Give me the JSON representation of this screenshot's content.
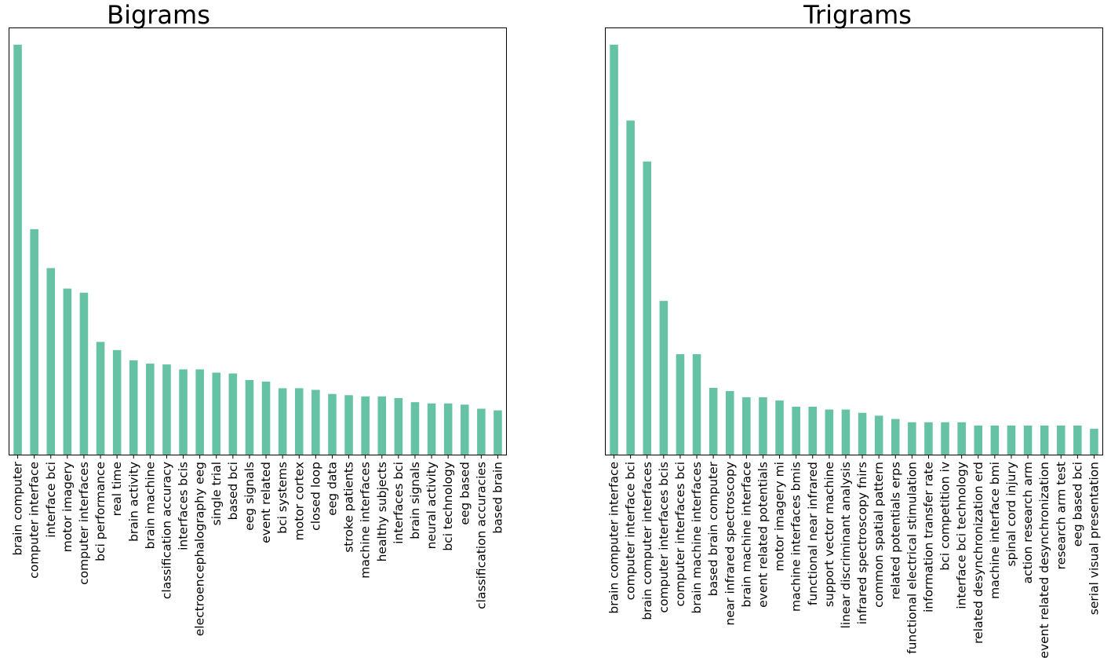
{
  "colors": {
    "bar": "#66c2a5",
    "axes": "#000000",
    "background": "#ffffff"
  },
  "chart_data": [
    {
      "type": "bar",
      "title": "Bigrams",
      "xlabel": "",
      "ylabel": "",
      "y_axis_visible": false,
      "grid": false,
      "ylim": [
        0,
        104
      ],
      "categories": [
        "brain computer",
        "computer interface",
        "interface bci",
        "motor imagery",
        "computer interfaces",
        "bci performance",
        "real time",
        "brain activity",
        "brain machine",
        "classification accuracy",
        "interfaces bcis",
        "electroencephalography eeg",
        "single trial",
        "based bci",
        "eeg signals",
        "event related",
        "bci systems",
        "motor cortex",
        "closed loop",
        "eeg data",
        "stroke patients",
        "machine interfaces",
        "healthy subjects",
        "interfaces bci",
        "brain signals",
        "neural activity",
        "bci technology",
        "eeg based",
        "classification accuracies",
        "based brain"
      ],
      "values": [
        100,
        55,
        45.5,
        40.5,
        39.5,
        27.5,
        25.5,
        23,
        22.2,
        22,
        20.8,
        20.8,
        20,
        19.8,
        18.2,
        17.8,
        16.2,
        16.2,
        15.8,
        14.8,
        14.5,
        14.2,
        14.2,
        13.8,
        12.8,
        12.5,
        12.5,
        12.2,
        11.2,
        10.8
      ]
    },
    {
      "type": "bar",
      "title": "Trigrams",
      "xlabel": "",
      "ylabel": "",
      "y_axis_visible": false,
      "grid": false,
      "ylim": [
        0,
        104
      ],
      "categories": [
        "brain computer interface",
        "computer interface bci",
        "brain computer interfaces",
        "computer interfaces bcis",
        "computer interfaces bci",
        "brain machine interfaces",
        "based brain computer",
        "near infrared spectroscopy",
        "brain machine interface",
        "event related potentials",
        "motor imagery mi",
        "machine interfaces bmis",
        "functional near infrared",
        "support vector machine",
        "linear discriminant analysis",
        "infrared spectroscopy fnirs",
        "common spatial pattern",
        "related potentials erps",
        "functional electrical stimulation",
        "information transfer rate",
        "bci competition iv",
        "interface bci technology",
        "related desynchronization erd",
        "machine interface bmi",
        "spinal cord injury",
        "action research arm",
        "event related desynchronization",
        "research arm test",
        "eeg based bci",
        "serial visual presentation"
      ],
      "values": [
        100,
        81.5,
        71.5,
        37.5,
        24.5,
        24.5,
        16.3,
        15.5,
        14,
        14,
        13.2,
        11.7,
        11.7,
        11,
        11,
        10.2,
        9.5,
        8.7,
        7.9,
        7.9,
        7.9,
        7.9,
        7.1,
        7.1,
        7.1,
        7.1,
        7.1,
        7.1,
        7.1,
        6.3
      ]
    }
  ]
}
